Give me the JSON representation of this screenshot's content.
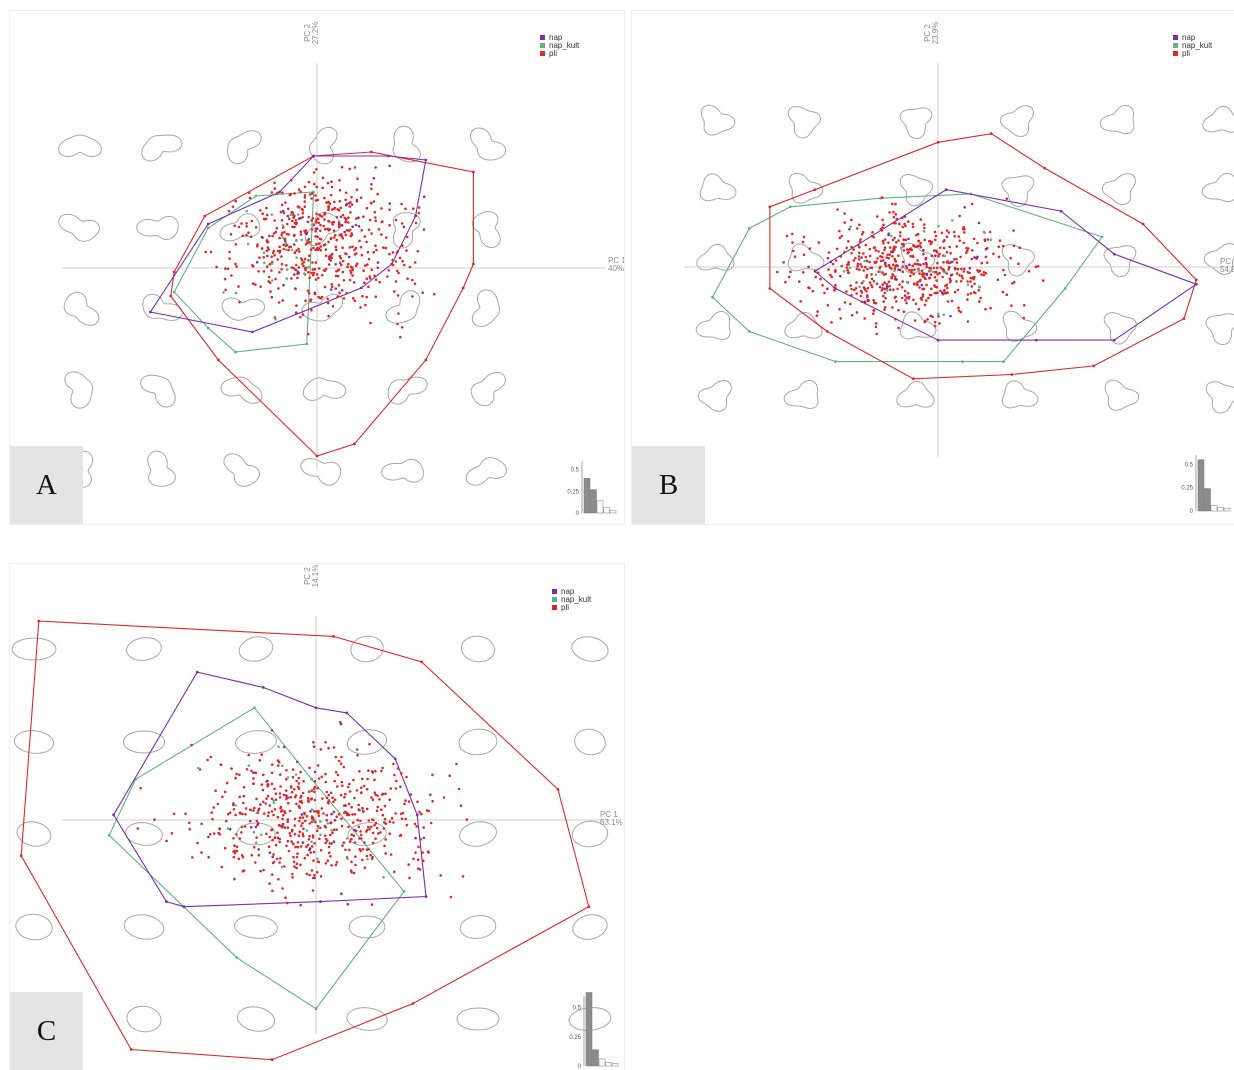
{
  "colors": {
    "nap": "#7b2fb0",
    "nap_kult": "#5db38a",
    "pli": "#dc2a2a",
    "axis": "#cfcfcf",
    "shape": "#a8a8a8",
    "bar": "#8c8c8c"
  },
  "legend": [
    "nap",
    "nap_kult",
    "pli"
  ],
  "chart_data": [
    {
      "panel": "A",
      "type": "scatter",
      "xlabel": "PC 1",
      "xpct": "40%",
      "ylabel": "PC 2",
      "ypct": "27.2%",
      "scree": {
        "ticks": [
          "0.5",
          "0.25",
          "0"
        ],
        "values": [
          0.4,
          0.27,
          0.14,
          0.06,
          0.03
        ]
      },
      "hulls": {
        "nap": [
          [
            -4.9,
            -1.1
          ],
          [
            -1.9,
            -1.6
          ],
          [
            1.3,
            -0.5
          ],
          [
            2.2,
            0.1
          ],
          [
            2.9,
            1.3
          ],
          [
            3.2,
            2.7
          ],
          [
            2.1,
            2.8
          ],
          [
            -0.1,
            2.8
          ],
          [
            -1.1,
            1.9
          ],
          [
            -3.2,
            1.1
          ]
        ],
        "nap_kult": [
          [
            -4.2,
            -0.6
          ],
          [
            -3.2,
            -1.5
          ],
          [
            -2.4,
            -2.1
          ],
          [
            -0.3,
            -1.9
          ],
          [
            -0.1,
            1.9
          ],
          [
            -1.8,
            1.8
          ],
          [
            -3.2,
            1.0
          ]
        ],
        "pli": [
          [
            -4.3,
            -0.7
          ],
          [
            -2.9,
            -2.3
          ],
          [
            0.0,
            -4.7
          ],
          [
            1.1,
            -4.4
          ],
          [
            3.2,
            -2.3
          ],
          [
            4.3,
            -0.5
          ],
          [
            4.6,
            0.1
          ],
          [
            4.6,
            2.4
          ],
          [
            1.6,
            2.9
          ],
          [
            -0.1,
            2.8
          ],
          [
            -3.3,
            1.3
          ],
          [
            -4.2,
            -0.1
          ]
        ]
      },
      "pts": 520,
      "seed": 11,
      "cx": 0.1,
      "cy": 0.6,
      "sx": 1.8,
      "sy": 1.15
    },
    {
      "panel": "B",
      "type": "scatter",
      "xlabel": "PC 1",
      "xpct": "54.9%",
      "ylabel": "PC 2",
      "ypct": "23.9%",
      "scree": {
        "ticks": [
          "0.5",
          "0.25",
          "0"
        ],
        "values": [
          0.55,
          0.24,
          0.06,
          0.04,
          0.03
        ]
      },
      "hulls": {
        "nap": [
          [
            -3.0,
            -0.1
          ],
          [
            0.2,
            1.8
          ],
          [
            3.0,
            1.3
          ],
          [
            4.3,
            0.3
          ],
          [
            6.3,
            -0.4
          ],
          [
            4.3,
            -1.7
          ],
          [
            2.4,
            -1.7
          ],
          [
            0.0,
            -1.7
          ],
          [
            -2.5,
            -0.5
          ]
        ],
        "nap_kult": [
          [
            -5.5,
            -0.7
          ],
          [
            -4.6,
            0.9
          ],
          [
            -3.6,
            1.4
          ],
          [
            -1.4,
            1.6
          ],
          [
            0.8,
            1.7
          ],
          [
            4.0,
            0.7
          ],
          [
            3.1,
            -0.5
          ],
          [
            1.6,
            -2.2
          ],
          [
            0.6,
            -2.2
          ],
          [
            -2.5,
            -2.2
          ],
          [
            -4.6,
            -1.5
          ]
        ],
        "pli": [
          [
            -4.1,
            1.4
          ],
          [
            -4.1,
            -0.5
          ],
          [
            -2.7,
            -1.5
          ],
          [
            -0.6,
            -2.6
          ],
          [
            1.8,
            -2.5
          ],
          [
            3.8,
            -2.3
          ],
          [
            6.0,
            -1.2
          ],
          [
            6.3,
            -0.3
          ],
          [
            5.0,
            1.0
          ],
          [
            2.6,
            2.3
          ],
          [
            1.3,
            3.1
          ],
          [
            0.0,
            2.9
          ],
          [
            -3.0,
            1.8
          ]
        ]
      },
      "pts": 560,
      "seed": 23,
      "cx": -0.7,
      "cy": 0.0,
      "sx": 1.7,
      "sy": 0.9
    },
    {
      "panel": "C",
      "type": "scatter",
      "xlabel": "PC 1",
      "xpct": "63.1%",
      "ylabel": "PC 2",
      "ypct": "14.1%",
      "scree": {
        "ticks": [
          "0.5",
          "0.25",
          "0"
        ],
        "values": [
          0.63,
          0.14,
          0.06,
          0.03,
          0.02
        ]
      },
      "hulls": {
        "nap": [
          [
            -4.6,
            0.1
          ],
          [
            -3.4,
            -1.6
          ],
          [
            -3.0,
            -1.7
          ],
          [
            0.1,
            -1.6
          ],
          [
            2.5,
            -1.5
          ],
          [
            2.3,
            0.1
          ],
          [
            1.8,
            1.2
          ],
          [
            0.7,
            2.1
          ],
          [
            0.0,
            2.2
          ],
          [
            -1.2,
            2.6
          ],
          [
            -2.7,
            2.9
          ]
        ],
        "nap_kult": [
          [
            -4.7,
            -0.3
          ],
          [
            -4.1,
            0.8
          ],
          [
            -1.4,
            2.2
          ],
          [
            -0.1,
            0.8
          ],
          [
            2.0,
            -1.4
          ],
          [
            0.0,
            -3.7
          ],
          [
            -1.8,
            -2.7
          ]
        ],
        "pli": [
          [
            -6.7,
            -0.7
          ],
          [
            -6.3,
            3.9
          ],
          [
            0.4,
            3.6
          ],
          [
            2.4,
            3.1
          ],
          [
            5.5,
            0.6
          ],
          [
            6.2,
            -1.7
          ],
          [
            2.2,
            -3.6
          ],
          [
            -1.0,
            -4.7
          ],
          [
            -4.2,
            -4.5
          ]
        ]
      },
      "pts": 560,
      "seed": 37,
      "cx": 0.0,
      "cy": 0.05,
      "sx": 1.9,
      "sy": 0.95
    }
  ],
  "panels": {
    "A": {
      "letter": "A"
    },
    "B": {
      "letter": "B"
    },
    "C": {
      "letter": "C"
    }
  }
}
